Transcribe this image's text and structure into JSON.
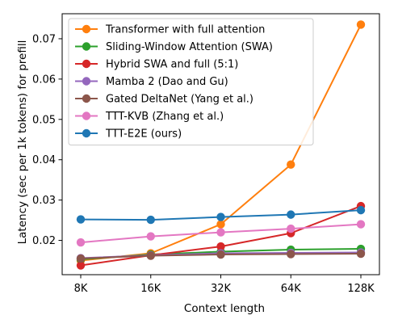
{
  "chart_data": {
    "type": "line",
    "xlabel": "Context length",
    "ylabel": "Latency (sec per 1k tokens) for prefill",
    "categories": [
      "8K",
      "16K",
      "32K",
      "64K",
      "128K"
    ],
    "x_scale": "log2",
    "ylim": [
      0.0115,
      0.0762
    ],
    "yticks": [
      0.02,
      0.03,
      0.04,
      0.05,
      0.06,
      0.07
    ],
    "ytick_labels": [
      "0.02",
      "0.03",
      "0.04",
      "0.05",
      "0.06",
      "0.07"
    ],
    "grid": false,
    "legend_position": "top-left",
    "series": [
      {
        "name": "Transformer with full attention",
        "color": "#ff7f0e",
        "values": [
          0.015,
          0.0168,
          0.024,
          0.0388,
          0.0735
        ]
      },
      {
        "name": "Sliding-Window Attention (SWA)",
        "color": "#2ca02c",
        "values": [
          0.0153,
          0.0165,
          0.0172,
          0.0177,
          0.0179
        ]
      },
      {
        "name": "Hybrid SWA and full (5:1)",
        "color": "#d62728",
        "values": [
          0.0138,
          0.0163,
          0.0185,
          0.0218,
          0.0285
        ]
      },
      {
        "name": "Mamba 2 (Dao and Gu)",
        "color": "#9467bd",
        "values": [
          0.0156,
          0.0163,
          0.0168,
          0.0169,
          0.017
        ]
      },
      {
        "name": "Gated DeltaNet (Yang et al.)",
        "color": "#8c564b",
        "values": [
          0.0155,
          0.0162,
          0.0165,
          0.0166,
          0.0167
        ]
      },
      {
        "name": "TTT-KVB (Zhang et al.)",
        "color": "#e377c2",
        "values": [
          0.0195,
          0.021,
          0.022,
          0.0229,
          0.024
        ]
      },
      {
        "name": "TTT-E2E (ours)",
        "color": "#1f77b4",
        "values": [
          0.0252,
          0.0251,
          0.0258,
          0.0264,
          0.0275
        ]
      }
    ]
  }
}
